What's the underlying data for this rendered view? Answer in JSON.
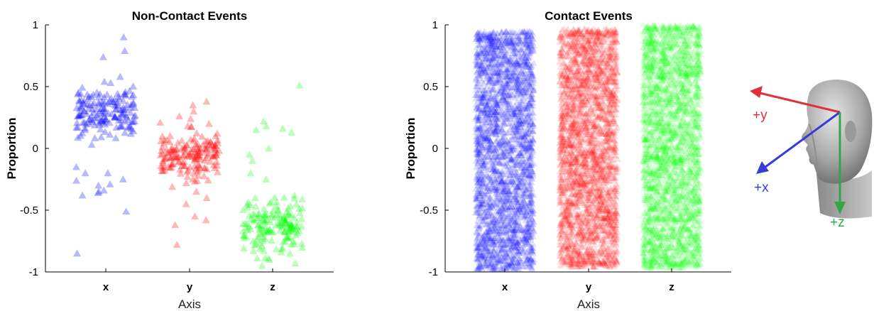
{
  "chart_data": [
    {
      "type": "scatter",
      "title": "Non-Contact Events",
      "xlabel": "Axis",
      "ylabel": "Proportion",
      "categories": [
        "x",
        "y",
        "z"
      ],
      "yticks": [
        "-1",
        "-0.5",
        "0",
        "0.5",
        "1"
      ],
      "ylim": [
        -1,
        1
      ],
      "grid": false,
      "marker": "triangle",
      "series": [
        {
          "category": "x",
          "color": "#0000ff",
          "n_points": 180,
          "core_center": 0.29,
          "core_spread": 0.1,
          "min": -0.85,
          "max": 0.9,
          "outliers": [
            0.9,
            0.79,
            0.74,
            0.58,
            0.53,
            0.45,
            0.42,
            -0.2,
            -0.26,
            -0.3,
            -0.35,
            -0.38,
            -0.36,
            -0.34,
            -0.29,
            -0.25,
            -0.2,
            -0.15,
            -0.51,
            -0.85
          ]
        },
        {
          "category": "y",
          "color": "#ff0000",
          "n_points": 180,
          "core_center": -0.05,
          "core_spread": 0.1,
          "min": -0.78,
          "max": 0.38,
          "outliers": [
            0.38,
            0.35,
            0.3,
            0.26,
            0.24,
            0.2,
            -0.35,
            -0.4,
            -0.45,
            -0.55,
            -0.58,
            -0.62,
            -0.78
          ]
        },
        {
          "category": "z",
          "color": "#00ff00",
          "n_points": 180,
          "core_center": -0.63,
          "core_spread": 0.1,
          "min": -0.96,
          "max": 0.51,
          "outliers": [
            0.51,
            0.22,
            0.18,
            0.16,
            0.15,
            0.13,
            0.0,
            -0.05,
            -0.1,
            -0.2,
            -0.25,
            -0.38,
            -0.4,
            -0.9,
            -0.93,
            -0.95
          ]
        }
      ]
    },
    {
      "type": "scatter",
      "title": "Contact Events",
      "xlabel": "Axis",
      "ylabel": "Proportion",
      "categories": [
        "x",
        "y",
        "z"
      ],
      "yticks": [
        "-1",
        "-0.5",
        "0",
        "0.5",
        "1"
      ],
      "ylim": [
        -1,
        1
      ],
      "grid": false,
      "marker": "triangle",
      "series": [
        {
          "category": "x",
          "color": "#0000ff",
          "n_points": 2600,
          "distribution": "uniform",
          "min": -0.98,
          "max": 0.95
        },
        {
          "category": "y",
          "color": "#ff0000",
          "n_points": 2600,
          "distribution": "uniform",
          "min": -0.96,
          "max": 0.97
        },
        {
          "category": "z",
          "color": "#00ff00",
          "n_points": 2600,
          "distribution": "uniform",
          "min": -0.97,
          "max": 1.0
        }
      ]
    }
  ],
  "head_legend": {
    "labels": {
      "y": "+y",
      "x": "+x",
      "z": "+z"
    },
    "colors": {
      "y": "#e0303a",
      "x": "#3a3ad4",
      "z": "#2ea84a"
    }
  }
}
